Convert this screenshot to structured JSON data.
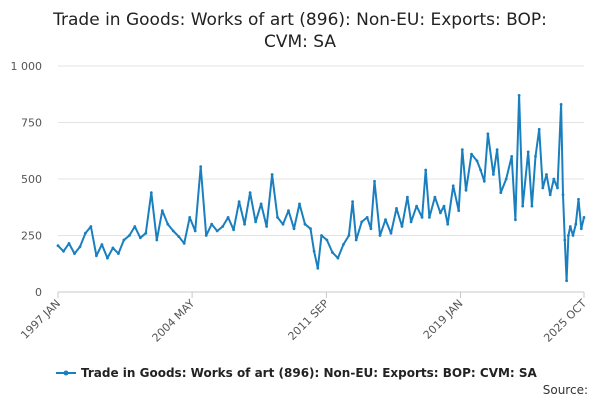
{
  "chart_data": {
    "type": "line",
    "title_lines": [
      "Trade in Goods: Works of art (896): Non-EU: Exports: BOP:",
      "CVM: SA"
    ],
    "xlabel": "",
    "ylabel": "",
    "ylim": [
      0,
      1000
    ],
    "y_ticks": [
      {
        "value": 0,
        "label": "0"
      },
      {
        "value": 250,
        "label": "250"
      },
      {
        "value": 500,
        "label": "500"
      },
      {
        "value": 750,
        "label": "750"
      },
      {
        "value": 1000,
        "label": "1 000"
      }
    ],
    "x_range": [
      1997.0,
      2025.75
    ],
    "x_ticks": [
      {
        "value": 1997.0,
        "label": "1997 JAN"
      },
      {
        "value": 2004.33,
        "label": "2004 MAY"
      },
      {
        "value": 2011.67,
        "label": "2011 SEP"
      },
      {
        "value": 2019.0,
        "label": "2019 JAN"
      },
      {
        "value": 2025.75,
        "label": "2025 OCT"
      }
    ],
    "grid": true,
    "legend_position": "bottom",
    "series": [
      {
        "name": "Trade in Goods: Works of art (896): Non-EU: Exports: BOP: CVM: SA",
        "color": "#1a7fbf",
        "points": [
          [
            1997.0,
            205
          ],
          [
            1997.3,
            180
          ],
          [
            1997.6,
            215
          ],
          [
            1997.9,
            170
          ],
          [
            1998.2,
            200
          ],
          [
            1998.5,
            260
          ],
          [
            1998.8,
            290
          ],
          [
            1999.1,
            160
          ],
          [
            1999.4,
            210
          ],
          [
            1999.7,
            150
          ],
          [
            2000.0,
            195
          ],
          [
            2000.3,
            170
          ],
          [
            2000.6,
            230
          ],
          [
            2000.9,
            250
          ],
          [
            2001.2,
            290
          ],
          [
            2001.5,
            240
          ],
          [
            2001.8,
            260
          ],
          [
            2002.1,
            440
          ],
          [
            2002.4,
            230
          ],
          [
            2002.7,
            360
          ],
          [
            2003.0,
            300
          ],
          [
            2003.3,
            270
          ],
          [
            2003.6,
            245
          ],
          [
            2003.9,
            215
          ],
          [
            2004.2,
            330
          ],
          [
            2004.5,
            270
          ],
          [
            2004.8,
            555
          ],
          [
            2005.1,
            250
          ],
          [
            2005.4,
            300
          ],
          [
            2005.7,
            270
          ],
          [
            2006.0,
            290
          ],
          [
            2006.3,
            330
          ],
          [
            2006.6,
            275
          ],
          [
            2006.9,
            400
          ],
          [
            2007.2,
            300
          ],
          [
            2007.5,
            440
          ],
          [
            2007.8,
            310
          ],
          [
            2008.1,
            390
          ],
          [
            2008.4,
            290
          ],
          [
            2008.7,
            520
          ],
          [
            2009.0,
            330
          ],
          [
            2009.3,
            300
          ],
          [
            2009.6,
            360
          ],
          [
            2009.9,
            280
          ],
          [
            2010.2,
            390
          ],
          [
            2010.5,
            300
          ],
          [
            2010.8,
            280
          ],
          [
            2011.0,
            180
          ],
          [
            2011.2,
            105
          ],
          [
            2011.4,
            250
          ],
          [
            2011.7,
            230
          ],
          [
            2012.0,
            175
          ],
          [
            2012.3,
            150
          ],
          [
            2012.6,
            210
          ],
          [
            2012.9,
            250
          ],
          [
            2013.1,
            400
          ],
          [
            2013.3,
            230
          ],
          [
            2013.6,
            310
          ],
          [
            2013.9,
            330
          ],
          [
            2014.1,
            280
          ],
          [
            2014.3,
            490
          ],
          [
            2014.6,
            250
          ],
          [
            2014.9,
            320
          ],
          [
            2015.2,
            260
          ],
          [
            2015.5,
            370
          ],
          [
            2015.8,
            290
          ],
          [
            2016.1,
            420
          ],
          [
            2016.3,
            310
          ],
          [
            2016.6,
            380
          ],
          [
            2016.9,
            330
          ],
          [
            2017.1,
            540
          ],
          [
            2017.3,
            330
          ],
          [
            2017.6,
            420
          ],
          [
            2017.9,
            350
          ],
          [
            2018.1,
            380
          ],
          [
            2018.3,
            300
          ],
          [
            2018.6,
            470
          ],
          [
            2018.9,
            360
          ],
          [
            2019.1,
            630
          ],
          [
            2019.3,
            450
          ],
          [
            2019.6,
            610
          ],
          [
            2019.9,
            580
          ],
          [
            2020.1,
            540
          ],
          [
            2020.3,
            490
          ],
          [
            2020.5,
            700
          ],
          [
            2020.8,
            520
          ],
          [
            2021.0,
            630
          ],
          [
            2021.2,
            440
          ],
          [
            2021.5,
            500
          ],
          [
            2021.8,
            600
          ],
          [
            2022.0,
            320
          ],
          [
            2022.2,
            870
          ],
          [
            2022.4,
            380
          ],
          [
            2022.7,
            620
          ],
          [
            2022.9,
            380
          ],
          [
            2023.1,
            600
          ],
          [
            2023.3,
            720
          ],
          [
            2023.5,
            460
          ],
          [
            2023.7,
            520
          ],
          [
            2023.9,
            430
          ],
          [
            2024.1,
            500
          ],
          [
            2024.3,
            460
          ],
          [
            2024.5,
            830
          ],
          [
            2024.6,
            430
          ],
          [
            2024.7,
            230
          ],
          [
            2024.8,
            50
          ],
          [
            2024.9,
            250
          ],
          [
            2025.0,
            290
          ],
          [
            2025.15,
            250
          ],
          [
            2025.3,
            300
          ],
          [
            2025.45,
            410
          ],
          [
            2025.6,
            280
          ],
          [
            2025.75,
            330
          ]
        ]
      }
    ],
    "source_label": "Source:"
  }
}
